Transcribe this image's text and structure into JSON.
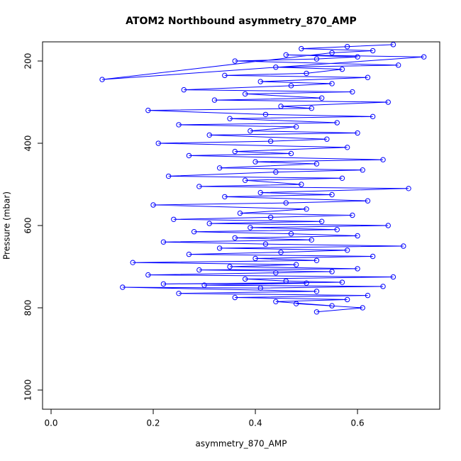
{
  "chart_data": {
    "type": "line",
    "markers": true,
    "title": "ATOM2 Northbound asymmetry_870_AMP",
    "x_label": "asymmetry_870_AMP",
    "y_label": "Pressure (mbar)",
    "color": "#0000ff",
    "xlim": [
      -0.0167,
      0.761
    ],
    "ylim": [
      1046.6,
      153.4
    ],
    "xticks": [
      {
        "value": 0,
        "label": "0.0"
      },
      0.2,
      0.4,
      0.6
    ],
    "yticks": [
      200,
      400,
      600,
      800,
      1000
    ],
    "x": [
      0.52,
      0.61,
      0.48,
      0.55,
      0.44,
      0.58,
      0.36,
      0.62,
      0.25,
      0.52,
      0.14,
      0.41,
      0.65,
      0.3,
      0.5,
      0.22,
      0.57,
      0.46,
      0.38,
      0.67,
      0.19,
      0.44,
      0.55,
      0.29,
      0.6,
      0.35,
      0.48,
      0.16,
      0.52,
      0.4,
      0.63,
      0.27,
      0.45,
      0.58,
      0.33,
      0.69,
      0.42,
      0.22,
      0.51,
      0.36,
      0.6,
      0.47,
      0.28,
      0.56,
      0.39,
      0.66,
      0.31,
      0.53,
      0.24,
      0.43,
      0.59,
      0.37,
      0.5,
      0.2,
      0.46,
      0.62,
      0.34,
      0.55,
      0.41,
      0.7,
      0.29,
      0.49,
      0.38,
      0.57,
      0.23,
      0.44,
      0.61,
      0.33,
      0.52,
      0.4,
      0.65,
      0.27,
      0.47,
      0.36,
      0.58,
      0.21,
      0.43,
      0.54,
      0.31,
      0.6,
      0.39,
      0.48,
      0.25,
      0.56,
      0.35,
      0.63,
      0.42,
      0.19,
      0.51,
      0.45,
      0.66,
      0.32,
      0.53,
      0.38,
      0.59,
      0.26,
      0.47,
      0.55,
      0.41,
      0.62,
      0.34,
      0.5,
      0.57,
      0.44,
      0.68,
      0.36,
      0.52,
      0.6,
      0.46,
      0.73,
      0.1,
      0.55,
      0.63,
      0.49,
      0.58,
      0.67
    ],
    "values": [
      810,
      800,
      790,
      795,
      785,
      780,
      775,
      770,
      765,
      760,
      750,
      752,
      748,
      745,
      740,
      742,
      738,
      735,
      730,
      725,
      720,
      715,
      712,
      708,
      705,
      700,
      695,
      690,
      685,
      680,
      675,
      670,
      665,
      660,
      655,
      650,
      645,
      640,
      635,
      630,
      625,
      620,
      615,
      610,
      605,
      600,
      595,
      590,
      585,
      580,
      575,
      570,
      560,
      550,
      545,
      540,
      530,
      525,
      520,
      510,
      505,
      500,
      490,
      485,
      480,
      470,
      465,
      460,
      450,
      445,
      440,
      430,
      425,
      420,
      410,
      400,
      395,
      390,
      380,
      375,
      370,
      360,
      355,
      350,
      340,
      335,
      330,
      320,
      315,
      310,
      300,
      295,
      290,
      280,
      275,
      270,
      260,
      255,
      250,
      240,
      235,
      230,
      220,
      215,
      210,
      200,
      195,
      190,
      185,
      190,
      245,
      180,
      175,
      170,
      165,
      160
    ]
  }
}
